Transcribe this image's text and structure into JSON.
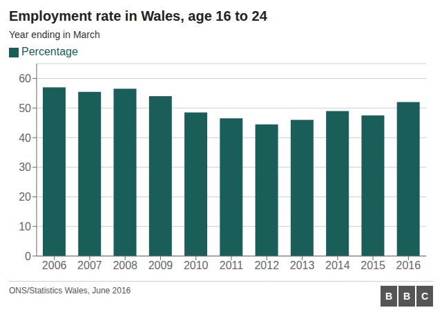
{
  "chart_data": {
    "type": "bar",
    "title": "Employment rate in Wales, age 16 to 24",
    "subtitle": "Year ending in March",
    "categories": [
      "2006",
      "2007",
      "2008",
      "2009",
      "2010",
      "2011",
      "2012",
      "2013",
      "2014",
      "2015",
      "2016"
    ],
    "series": [
      {
        "name": "Percentage",
        "color": "#1a5e5a",
        "values": [
          57.0,
          55.5,
          56.5,
          54.0,
          48.5,
          46.5,
          44.5,
          46.0,
          49.0,
          47.5,
          52.0
        ]
      }
    ],
    "ylim": [
      0,
      65
    ],
    "yticks": [
      0,
      10,
      20,
      30,
      40,
      50,
      60
    ],
    "grid": true,
    "legend": "top-left",
    "annotations": [
      "ONS/Statistics Wales, June 2016",
      "B",
      "B",
      "C"
    ]
  }
}
